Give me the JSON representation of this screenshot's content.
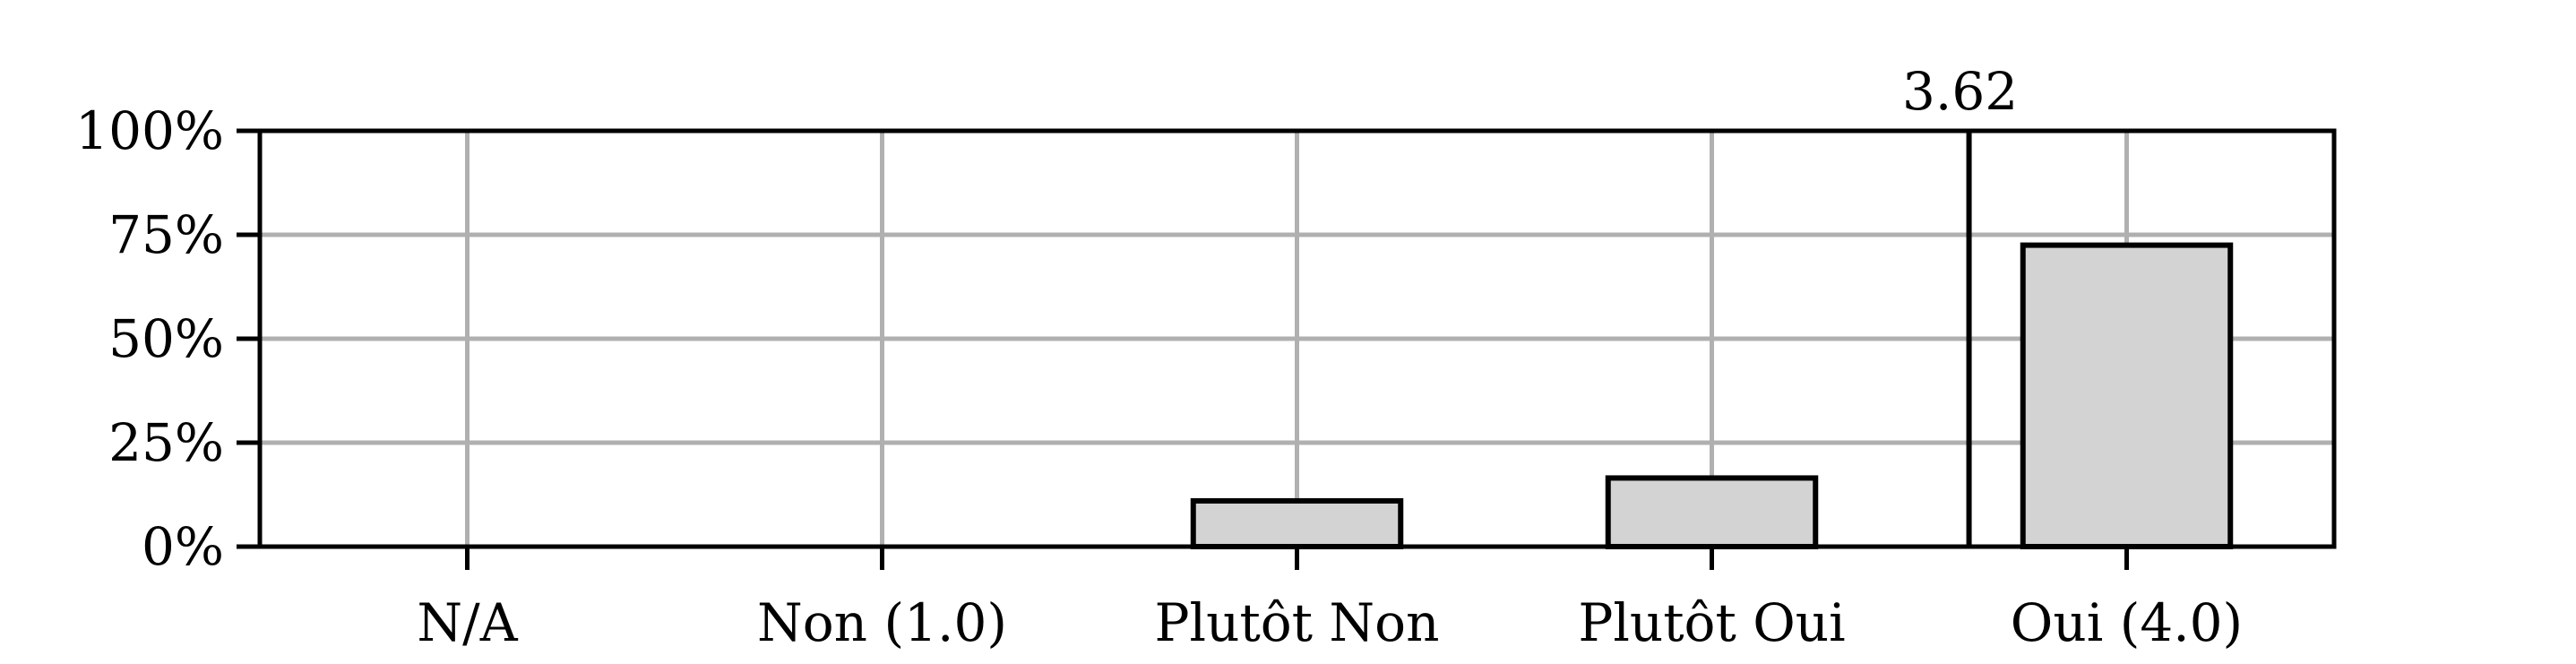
{
  "chart_data": {
    "type": "bar",
    "title": "",
    "xlabel": "",
    "ylabel": "",
    "categories": [
      "N/A",
      "Non (1.0)",
      "Plutôt Non",
      "Plutôt Oui",
      "Oui (4.0)"
    ],
    "values": [
      0,
      0,
      11,
      16.5,
      72.5
    ],
    "value_unit": "%",
    "ylim": [
      0,
      100
    ],
    "yticks": [
      "0%",
      "25%",
      "50%",
      "75%",
      "100%"
    ],
    "ytick_values": [
      0,
      25,
      50,
      75,
      100
    ],
    "grid": true,
    "bar_color": "#d3d3d3",
    "bar_edge_color": "#000000",
    "grid_color": "#b0b0b0",
    "mean": {
      "value": 3.62,
      "label": "3.62"
    }
  }
}
